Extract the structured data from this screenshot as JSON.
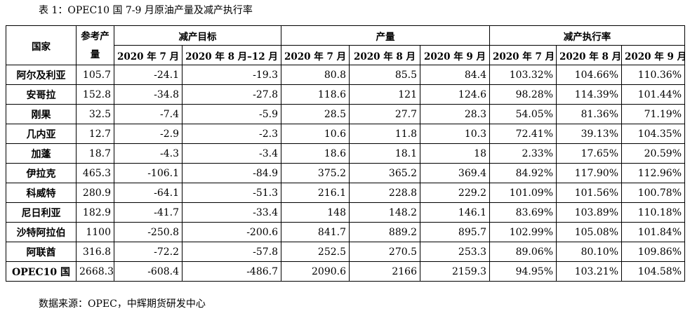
{
  "title": "表 1：OPEC10 国 7-9 月原油产量及减产执行率",
  "table": {
    "header": {
      "country": "国家",
      "reference": "参考产量",
      "groups": [
        "减产目标",
        "产量",
        "减产执行率"
      ]
    },
    "subheaders": [
      "2020 年 7 月",
      "2020 年 8 月–12 月",
      "2020 年 7 月",
      "2020 年 8 月",
      "2020 年 9 月",
      "2020 年 7 月",
      "2020 年 8 月",
      "2020 年 9 月"
    ],
    "rows": [
      [
        "阿尔及利亚",
        "105.7",
        "-24.1",
        "-19.3",
        "80.8",
        "85.5",
        "84.4",
        "103.32%",
        "104.66%",
        "110.36%"
      ],
      [
        "安哥拉",
        "152.8",
        "-34.8",
        "-27.8",
        "118.6",
        "121",
        "124.6",
        "98.28%",
        "114.39%",
        "101.44%"
      ],
      [
        "刚果",
        "32.5",
        "-7.4",
        "-5.9",
        "28.5",
        "27.7",
        "28.3",
        "54.05%",
        "81.36%",
        "71.19%"
      ],
      [
        "几内亚",
        "12.7",
        "-2.9",
        "-2.3",
        "10.6",
        "11.8",
        "10.3",
        "72.41%",
        "39.13%",
        "104.35%"
      ],
      [
        "加蓬",
        "18.7",
        "-4.3",
        "-3.4",
        "18.6",
        "18.1",
        "18",
        "2.33%",
        "17.65%",
        "20.59%"
      ],
      [
        "伊拉克",
        "465.3",
        "-106.1",
        "-84.9",
        "375.2",
        "365.2",
        "369.4",
        "84.92%",
        "117.90%",
        "112.96%"
      ],
      [
        "科威特",
        "280.9",
        "-64.1",
        "-51.3",
        "216.1",
        "228.8",
        "229.2",
        "101.09%",
        "101.56%",
        "100.78%"
      ],
      [
        "尼日利亚",
        "182.9",
        "-41.7",
        "-33.4",
        "148",
        "148.2",
        "146.1",
        "83.69%",
        "103.89%",
        "110.18%"
      ],
      [
        "沙特阿拉伯",
        "1100",
        "-250.8",
        "-200.6",
        "841.7",
        "889.2",
        "895.7",
        "102.99%",
        "105.08%",
        "101.84%"
      ],
      [
        "阿联酋",
        "316.8",
        "-72.2",
        "-57.8",
        "252.5",
        "270.5",
        "253.3",
        "89.06%",
        "80.10%",
        "109.86%"
      ],
      [
        "OPEC10 国",
        "2668.3",
        "-608.4",
        "-486.7",
        "2090.6",
        "2166",
        "2159.3",
        "94.95%",
        "103.21%",
        "104.58%"
      ]
    ]
  },
  "source": "数据来源：OPEC，中辉期货研发中心"
}
